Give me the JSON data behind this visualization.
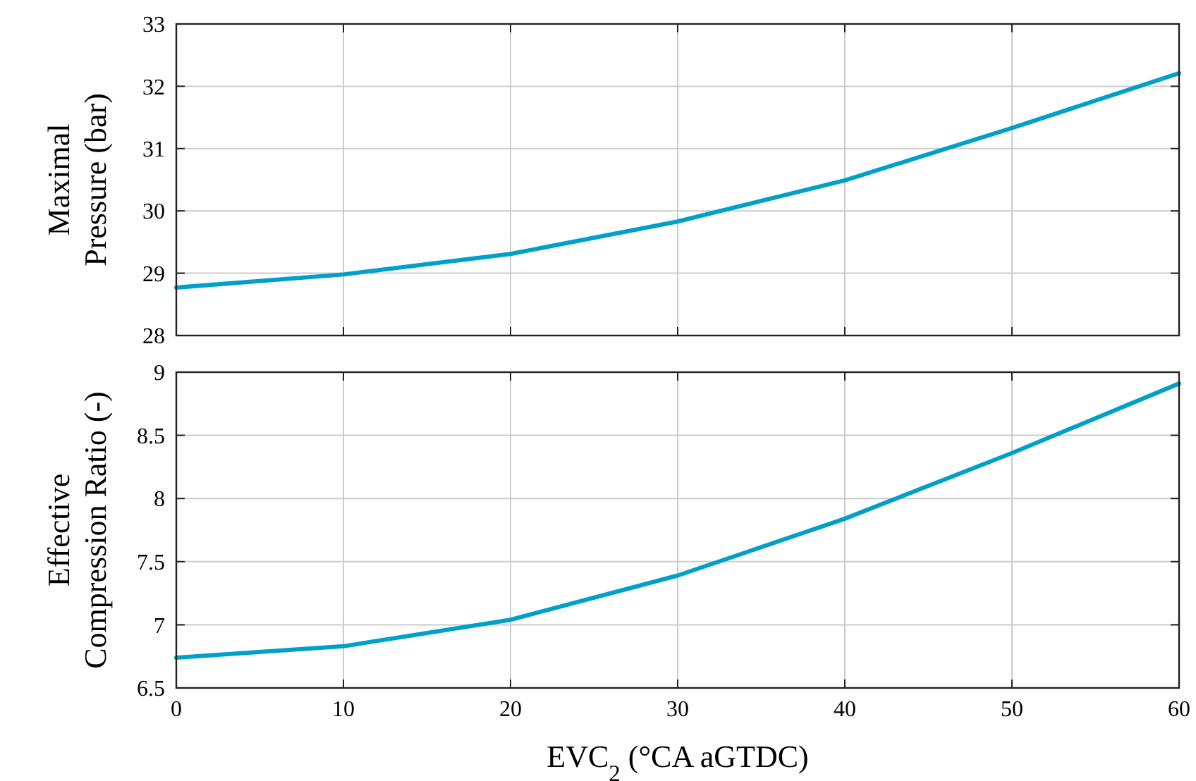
{
  "chart_data": [
    {
      "type": "line",
      "ylabel": "Maximal\nPressure (bar)",
      "x": [
        0,
        10,
        20,
        30,
        40,
        50,
        60
      ],
      "xlim": [
        0,
        60
      ],
      "xticks": [
        0,
        10,
        20,
        30,
        40,
        50,
        60
      ],
      "ylim": [
        28,
        33
      ],
      "yticks": [
        28,
        29,
        30,
        31,
        32,
        33
      ],
      "grid": true,
      "tick_labels": "y",
      "series": [
        {
          "color": "#00a0c8",
          "values": [
            28.77,
            28.98,
            29.31,
            29.83,
            30.49,
            31.33,
            32.21
          ]
        }
      ]
    },
    {
      "type": "line",
      "ylabel": "Effective\nCompression Ratio (-)",
      "xlabel": "EVC$_{2}$ (°CA aGTDC)",
      "x": [
        0,
        10,
        20,
        30,
        40,
        50,
        60
      ],
      "xlim": [
        0,
        60
      ],
      "xticks": [
        0,
        10,
        20,
        30,
        40,
        50,
        60
      ],
      "ylim": [
        6.5,
        9
      ],
      "yticks": [
        6.5,
        7,
        7.5,
        8,
        8.5,
        9
      ],
      "grid": true,
      "series": [
        {
          "color": "#00a0c8",
          "values": [
            6.74,
            6.83,
            7.04,
            7.39,
            7.84,
            8.36,
            8.91
          ]
        }
      ]
    }
  ]
}
